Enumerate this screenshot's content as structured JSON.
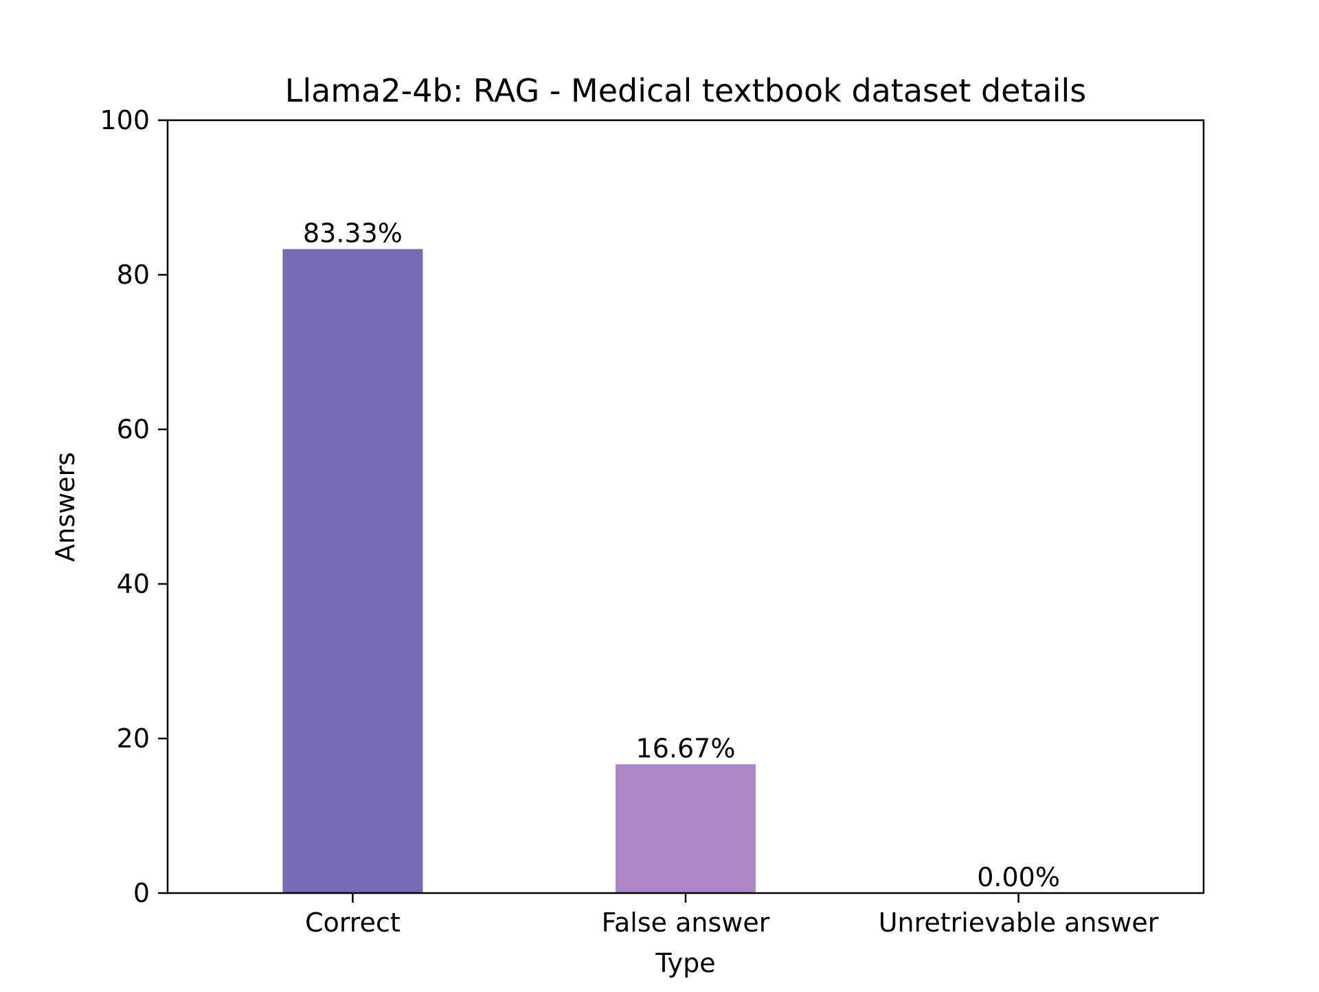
{
  "chart_data": {
    "type": "bar",
    "title": "Llama2-4b: RAG - Medical textbook dataset details",
    "xlabel": "Type",
    "ylabel": "Answers",
    "categories": [
      "Correct",
      "False answer",
      "Unretrievable answer"
    ],
    "values": [
      83.33,
      16.67,
      0.0
    ],
    "data_labels": [
      "83.33%",
      "16.67%",
      "0.00%"
    ],
    "bar_colors": [
      "#756bb6",
      "#ac88c6",
      "#dcc7e6"
    ],
    "ylim": [
      0,
      100
    ],
    "yticks": [
      0,
      20,
      40,
      60,
      80,
      100
    ],
    "grid": false,
    "legend": "none"
  }
}
